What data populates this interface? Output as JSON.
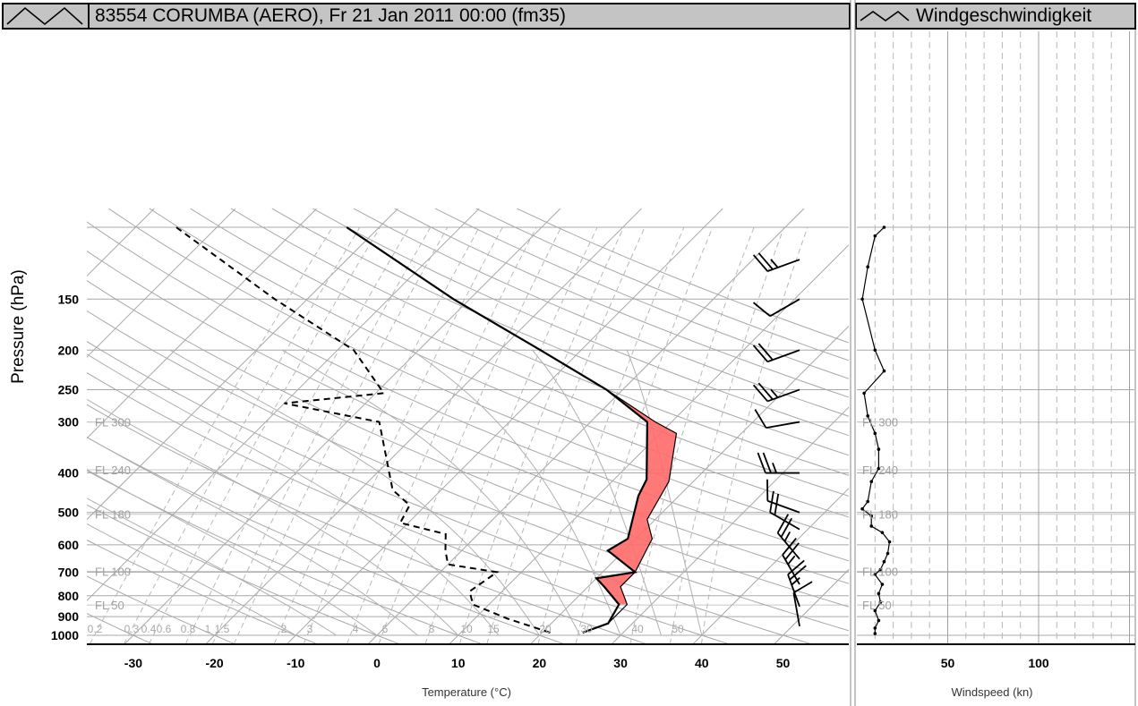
{
  "header": {
    "main_title": "83554 CORUMBA (AERO), Fr 21 Jan 2011 00:00 (fm35)",
    "wind_title": "Windgeschwindigkeit"
  },
  "colors": {
    "cape_fill": "#ff6a6a",
    "grid": "#a8a8a8",
    "title_bg": "#c4c4c4"
  },
  "chart_data": [
    {
      "type": "line",
      "title": "83554 CORUMBA (AERO), Fr 21 Jan 2011 00:00 (fm35)",
      "chart_kind": "skew-T log-P sounding",
      "xlabel": "Temperature (°C)",
      "ylabel": "Pressure (hPa)",
      "xlim": [
        -35,
        58
      ],
      "ylim": [
        1030,
        100
      ],
      "y_scale": "log",
      "x_ticks": [
        -30,
        -20,
        -10,
        0,
        10,
        20,
        30,
        40,
        50
      ],
      "y_ticks": [
        150,
        200,
        250,
        300,
        400,
        500,
        600,
        700,
        800,
        900,
        1000
      ],
      "flight_levels": [
        {
          "label": "FL 300",
          "p": 300
        },
        {
          "label": "FL 240",
          "p": 393
        },
        {
          "label": "FL 180",
          "p": 505
        },
        {
          "label": "FL 100",
          "p": 697
        },
        {
          "label": "FL 50",
          "p": 843
        }
      ],
      "mixing_ratio_labels": [
        "0.2",
        "0.3",
        "0.4",
        "0.6",
        "0.8",
        "1",
        "1.5",
        "2",
        "3",
        "4",
        "6",
        "8",
        "10",
        "15",
        "20",
        "30",
        "40",
        "50"
      ],
      "series": [
        {
          "name": "temperature",
          "points": [
            [
              25,
              985
            ],
            [
              27,
              935
            ],
            [
              26,
              840
            ],
            [
              22,
              760
            ],
            [
              20,
              725
            ],
            [
              24,
              700
            ],
            [
              18,
              620
            ],
            [
              19,
              580
            ],
            [
              15,
              455
            ],
            [
              14,
              415
            ],
            [
              7,
              300
            ],
            [
              -2,
              250
            ],
            [
              -15,
              200
            ],
            [
              -32,
              150
            ],
            [
              -54,
              100
            ]
          ]
        },
        {
          "name": "dewpoint",
          "points": [
            [
              21,
              985
            ],
            [
              14,
              910
            ],
            [
              8,
              840
            ],
            [
              6,
              780
            ],
            [
              7,
              700
            ],
            [
              0,
              670
            ],
            [
              -2,
              620
            ],
            [
              -4,
              565
            ],
            [
              -11,
              530
            ],
            [
              -12,
              480
            ],
            [
              -16,
              440
            ],
            [
              -26,
              300
            ],
            [
              -40,
              270
            ],
            [
              -29,
              255
            ],
            [
              -38,
              200
            ],
            [
              -54,
              150
            ],
            [
              -75,
              100
            ]
          ]
        },
        {
          "name": "parcel",
          "points": [
            [
              27,
              935
            ],
            [
              27,
              840
            ],
            [
              24,
              760
            ],
            [
              24,
              700
            ],
            [
              22,
              580
            ],
            [
              19,
              520
            ],
            [
              17,
              420
            ],
            [
              12,
              320
            ],
            [
              8,
              300
            ],
            [
              -2,
              250
            ],
            [
              -15,
              200
            ],
            [
              -32,
              150
            ],
            [
              -54,
              100
            ]
          ]
        }
      ],
      "cape_region": "between parcel and temperature, 840–100 hPa",
      "wind_barbs": [
        {
          "p": 120,
          "dir": 250,
          "spd": 15
        },
        {
          "p": 150,
          "dir": 240,
          "spd": 10
        },
        {
          "p": 200,
          "dir": 250,
          "spd": 20
        },
        {
          "p": 250,
          "dir": 250,
          "spd": 15
        },
        {
          "p": 300,
          "dir": 260,
          "spd": 10
        },
        {
          "p": 400,
          "dir": 270,
          "spd": 15
        },
        {
          "p": 500,
          "dir": 290,
          "spd": 10
        },
        {
          "p": 550,
          "dir": 300,
          "spd": 20
        },
        {
          "p": 650,
          "dir": 320,
          "spd": 15
        },
        {
          "p": 750,
          "dir": 330,
          "spd": 15
        },
        {
          "p": 850,
          "dir": 340,
          "spd": 15
        },
        {
          "p": 950,
          "dir": 350,
          "spd": 10
        }
      ]
    },
    {
      "type": "line",
      "title": "Windgeschwindigkeit",
      "xlabel": "Windspeed (kn)",
      "xlim": [
        0,
        150
      ],
      "x_ticks": [
        50,
        100
      ],
      "flight_levels": [
        {
          "label": "FL 300",
          "p": 300
        },
        {
          "label": "FL 240",
          "p": 393
        },
        {
          "label": "FL 180",
          "p": 505
        },
        {
          "label": "FL 100",
          "p": 697
        },
        {
          "label": "FL 50",
          "p": 843
        }
      ],
      "series": [
        {
          "name": "windspeed",
          "points": [
            [
              10,
              990
            ],
            [
              10,
              960
            ],
            [
              12,
              920
            ],
            [
              10,
              870
            ],
            [
              13,
              830
            ],
            [
              12,
              790
            ],
            [
              14,
              750
            ],
            [
              10,
              710
            ],
            [
              13,
              690
            ],
            [
              15,
              660
            ],
            [
              17,
              630
            ],
            [
              18,
              590
            ],
            [
              14,
              560
            ],
            [
              8,
              540
            ],
            [
              8,
              510
            ],
            [
              3,
              490
            ],
            [
              6,
              470
            ],
            [
              8,
              420
            ],
            [
              12,
              390
            ],
            [
              12,
              350
            ],
            [
              10,
              320
            ],
            [
              6,
              290
            ],
            [
              4,
              255
            ],
            [
              15,
              225
            ],
            [
              10,
              200
            ],
            [
              3,
              150
            ],
            [
              6,
              125
            ],
            [
              10,
              105
            ],
            [
              15,
              100
            ]
          ]
        }
      ]
    }
  ]
}
